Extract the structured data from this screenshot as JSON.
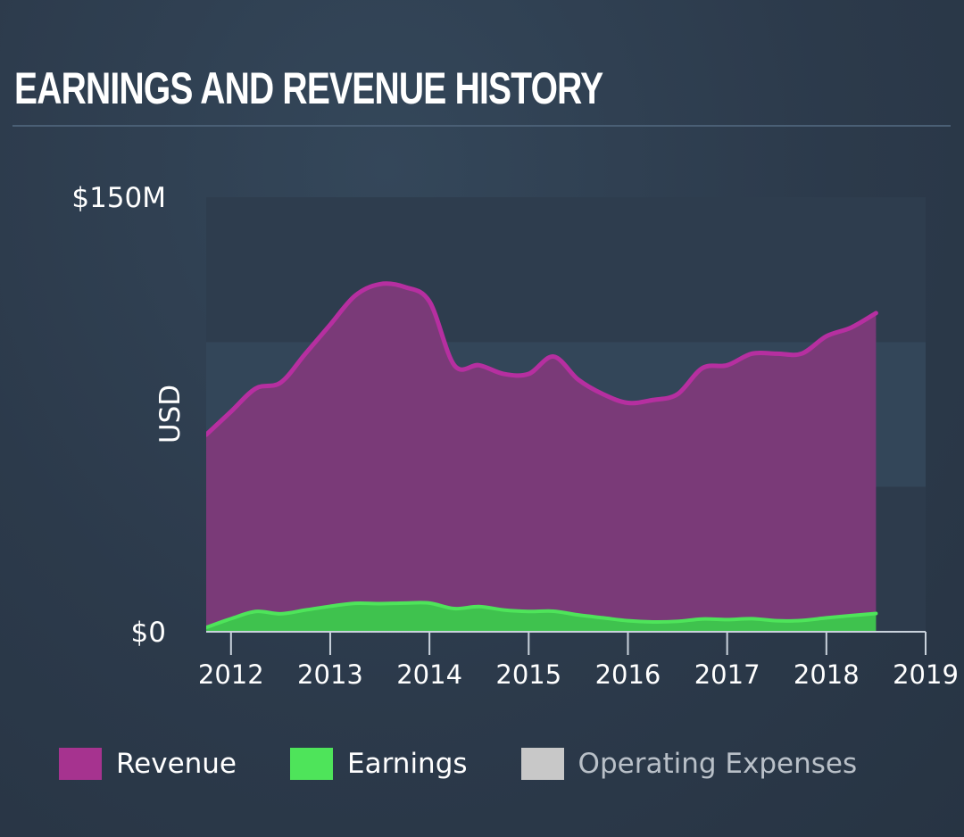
{
  "title": "EARNINGS AND REVENUE HISTORY",
  "colors": {
    "revenue_line": "#b62fa0",
    "revenue_fill": "#7a3a78",
    "earnings_line": "#4ee45a",
    "earnings_fill": "#3fc24e",
    "opex": "#c8c8c8",
    "axis": "#c9d2dc"
  },
  "legend": [
    {
      "label": "Revenue",
      "color": "#a6338f",
      "muted": false
    },
    {
      "label": "Earnings",
      "color": "#4ee45a",
      "muted": false
    },
    {
      "label": "Operating Expenses",
      "color": "#c8c8c8",
      "muted": true
    }
  ],
  "chart_data": {
    "type": "area",
    "ylabel": "USD",
    "ylim": [
      0,
      150
    ],
    "y_unit": "$M",
    "y_ticks": [
      {
        "value": 150,
        "label": "$150M"
      },
      {
        "value": 0,
        "label": "$0"
      }
    ],
    "xlim": [
      2011.75,
      2019.0
    ],
    "x_ticks": [
      2012,
      2013,
      2014,
      2015,
      2016,
      2017,
      2018,
      2019
    ],
    "x_tick_labels": [
      "2012",
      "2013",
      "2014",
      "2015",
      "2016",
      "2017",
      "2018",
      "2019"
    ],
    "grid": "horizontal bands",
    "legend_position": "bottom",
    "series": [
      {
        "name": "Revenue",
        "x": [
          2011.75,
          2012.0,
          2012.25,
          2012.5,
          2012.75,
          2013.0,
          2013.25,
          2013.5,
          2013.75,
          2014.0,
          2014.25,
          2014.5,
          2014.75,
          2015.0,
          2015.25,
          2015.5,
          2015.75,
          2016.0,
          2016.25,
          2016.5,
          2016.75,
          2017.0,
          2017.25,
          2017.5,
          2017.75,
          2018.0,
          2018.25,
          2018.5
        ],
        "y": [
          68,
          76,
          84,
          86,
          96,
          106,
          116,
          120,
          119,
          114,
          92,
          92,
          89,
          89,
          95,
          87,
          82,
          79,
          80,
          82,
          91,
          92,
          96,
          96,
          96,
          102,
          105,
          110
        ]
      },
      {
        "name": "Earnings",
        "x": [
          2011.75,
          2012.0,
          2012.25,
          2012.5,
          2012.75,
          2013.0,
          2013.25,
          2013.5,
          2013.75,
          2014.0,
          2014.25,
          2014.5,
          2014.75,
          2015.0,
          2015.25,
          2015.5,
          2015.75,
          2016.0,
          2016.25,
          2016.5,
          2016.75,
          2017.0,
          2017.25,
          2017.5,
          2017.75,
          2018.0,
          2018.25,
          2018.5
        ],
        "y": [
          1.5,
          4.5,
          7,
          6.2,
          7.5,
          8.8,
          9.8,
          9.7,
          9.9,
          9.9,
          8.0,
          8.7,
          7.5,
          7.0,
          7.1,
          5.8,
          4.8,
          3.8,
          3.4,
          3.6,
          4.4,
          4.2,
          4.5,
          3.8,
          3.9,
          4.8,
          5.6,
          6.3
        ]
      }
    ]
  }
}
